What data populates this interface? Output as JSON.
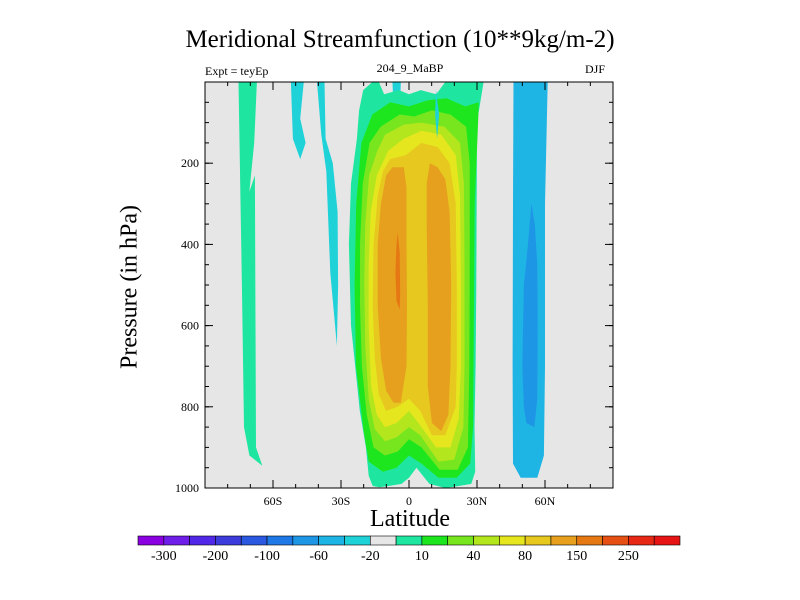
{
  "chart_data": {
    "type": "heatmap",
    "title": "Meridional Streamfunction (10**9kg/m-2)",
    "subtitle_left": "Expt = teyEp",
    "subtitle_center": "204_9_MaBP",
    "subtitle_right": "DJF",
    "xlabel": "Latitude",
    "ylabel": "Pressure (in hPa)",
    "xlim": [
      -90,
      90
    ],
    "ylim": [
      1000,
      0
    ],
    "x_ticks": [
      {
        "label": "60S",
        "value": -60
      },
      {
        "label": "30S",
        "value": -30
      },
      {
        "label": "0",
        "value": 0
      },
      {
        "label": "30N",
        "value": 30
      },
      {
        "label": "60N",
        "value": 60
      }
    ],
    "y_ticks": [
      {
        "label": "200",
        "value": 200
      },
      {
        "label": "400",
        "value": 400
      },
      {
        "label": "600",
        "value": 600
      },
      {
        "label": "800",
        "value": 800
      },
      {
        "label": "1000",
        "value": 1000
      }
    ],
    "colorbar": {
      "colors": [
        "#8a00e0",
        "#6e1ee8",
        "#5128e8",
        "#3c3cdc",
        "#2a58e0",
        "#1e78e6",
        "#1e96e6",
        "#1eb4e4",
        "#1ed2d8",
        "#e6e6e6",
        "#1ee6a0",
        "#1ee61e",
        "#78e61e",
        "#b4e61e",
        "#e6e61e",
        "#e6c81e",
        "#e6a01e",
        "#e67814",
        "#e65014",
        "#e62814",
        "#e61414"
      ],
      "labels": [
        "-300",
        "-200",
        "-100",
        "-60",
        "-20",
        "10",
        "40",
        "80",
        "150",
        "250"
      ]
    },
    "contours": [
      {
        "name": "sh-polar-cell",
        "fill": "#1ee6a0",
        "level": 10,
        "points": [
          [
            -75.2,
            0
          ],
          [
            -67.1,
            0
          ],
          [
            -68.3,
            150
          ],
          [
            -70.4,
            270
          ],
          [
            -68.0,
            230
          ],
          [
            -67.5,
            900
          ],
          [
            -64.7,
            945
          ],
          [
            -70.4,
            920
          ],
          [
            -72.8,
            850
          ],
          [
            -73.7,
            500
          ]
        ]
      },
      {
        "name": "sh-ferrel-strip-a",
        "fill": "#1ed2d8",
        "level": -20,
        "points": [
          [
            -52.1,
            0
          ],
          [
            -46.4,
            0
          ],
          [
            -48.0,
            90
          ],
          [
            -45.6,
            150
          ],
          [
            -48.0,
            190
          ],
          [
            -51.2,
            140
          ]
        ]
      },
      {
        "name": "sh-ferrel-strip-b",
        "fill": "#1ed2d8",
        "level": -20,
        "points": [
          [
            -40.6,
            0
          ],
          [
            -37.3,
            0
          ],
          [
            -36.8,
            140
          ],
          [
            -33.6,
            200
          ],
          [
            -31.5,
            320
          ],
          [
            -31.3,
            500
          ],
          [
            -31.8,
            650
          ],
          [
            -34.7,
            470
          ],
          [
            -36.5,
            220
          ],
          [
            -38.7,
            130
          ]
        ]
      },
      {
        "name": "sh-ferrel-strip-c",
        "fill": "#1ed2d8",
        "level": -20,
        "points": [
          [
            -7.3,
            0
          ],
          [
            -3.6,
            0
          ],
          [
            -4.0,
            80
          ],
          [
            -6.8,
            80
          ]
        ]
      },
      {
        "name": "hadley-10",
        "fill": "#1ee6a0",
        "level": 10,
        "points": [
          [
            -16.2,
            0
          ],
          [
            -13.3,
            0
          ],
          [
            -11.0,
            30
          ],
          [
            -4.5,
            20
          ],
          [
            0,
            30
          ],
          [
            5.2,
            20
          ],
          [
            12.0,
            30
          ],
          [
            16.0,
            0
          ],
          [
            32.9,
            0
          ],
          [
            30.0,
            100
          ],
          [
            29.7,
            500
          ],
          [
            29.4,
            700
          ],
          [
            28.9,
            850
          ],
          [
            29.2,
            960
          ],
          [
            27.5,
            990
          ],
          [
            22.0,
            995
          ],
          [
            16.0,
            1000
          ],
          [
            9.0,
            990
          ],
          [
            3.3,
            950
          ],
          [
            0,
            975
          ],
          [
            -3.3,
            990
          ],
          [
            -9.0,
            995
          ],
          [
            -13.0,
            998
          ],
          [
            -16.0,
            995
          ],
          [
            -17.8,
            970
          ],
          [
            -19.0,
            900
          ],
          [
            -21.7,
            810
          ],
          [
            -25.6,
            600
          ],
          [
            -26.5,
            400
          ],
          [
            -25.6,
            250
          ],
          [
            -23.0,
            140
          ],
          [
            -22.0,
            70
          ],
          [
            -20.2,
            20
          ]
        ]
      },
      {
        "name": "hadley-40",
        "fill": "#1ee61e",
        "level": 40,
        "points": [
          [
            -16.2,
            80
          ],
          [
            -8.3,
            50
          ],
          [
            0,
            60
          ],
          [
            8.3,
            45
          ],
          [
            16.5,
            40
          ],
          [
            24.8,
            60
          ],
          [
            30.8,
            50
          ],
          [
            30.5,
            100
          ],
          [
            29.0,
            300
          ],
          [
            28.6,
            600
          ],
          [
            28.3,
            850
          ],
          [
            27.0,
            940
          ],
          [
            21.0,
            975
          ],
          [
            13.0,
            975
          ],
          [
            5.5,
            940
          ],
          [
            0,
            920
          ],
          [
            -5.5,
            950
          ],
          [
            -11.5,
            960
          ],
          [
            -17.8,
            935
          ],
          [
            -20.0,
            860
          ],
          [
            -23.4,
            700
          ],
          [
            -24.0,
            500
          ],
          [
            -23.3,
            300
          ],
          [
            -21.0,
            150
          ]
        ]
      },
      {
        "name": "hadley-80",
        "fill": "#78e61e",
        "level": 80,
        "points": [
          [
            -12.5,
            110
          ],
          [
            -4.1,
            80
          ],
          [
            2.3,
            85
          ],
          [
            10.1,
            70
          ],
          [
            18.3,
            80
          ],
          [
            25.2,
            110
          ],
          [
            26.8,
            200
          ],
          [
            26.8,
            400
          ],
          [
            26.6,
            700
          ],
          [
            26.0,
            900
          ],
          [
            21.5,
            955
          ],
          [
            13.5,
            955
          ],
          [
            5.5,
            900
          ],
          [
            0,
            880
          ],
          [
            -5.0,
            910
          ],
          [
            -10.6,
            920
          ],
          [
            -15.6,
            900
          ],
          [
            -18.6,
            820
          ],
          [
            -20.8,
            700
          ],
          [
            -21.6,
            550
          ],
          [
            -21.6,
            400
          ],
          [
            -20.4,
            250
          ],
          [
            -17.4,
            150
          ]
        ]
      },
      {
        "name": "hadley-110",
        "fill": "#b4e61e",
        "level": 110,
        "points": [
          [
            -10.6,
            130
          ],
          [
            -2.3,
            105
          ],
          [
            5.5,
            100
          ],
          [
            15.6,
            110
          ],
          [
            22.5,
            150
          ],
          [
            24.2,
            250
          ],
          [
            24.5,
            450
          ],
          [
            24.5,
            700
          ],
          [
            24.0,
            850
          ],
          [
            20.0,
            930
          ],
          [
            13.0,
            935
          ],
          [
            5.0,
            870
          ],
          [
            0,
            850
          ],
          [
            -5.5,
            875
          ],
          [
            -10.6,
            885
          ],
          [
            -15.1,
            855
          ],
          [
            -17.8,
            780
          ],
          [
            -19.3,
            650
          ],
          [
            -19.7,
            500
          ],
          [
            -19.3,
            350
          ],
          [
            -17.6,
            230
          ],
          [
            -14.0,
            170
          ]
        ]
      },
      {
        "name": "hadley-130",
        "fill": "#e6e61e",
        "level": 130,
        "points": [
          [
            -9.2,
            170
          ],
          [
            -2.3,
            140
          ],
          [
            5.5,
            120
          ],
          [
            14.2,
            130
          ],
          [
            20.6,
            180
          ],
          [
            22.5,
            280
          ],
          [
            22.9,
            500
          ],
          [
            22.9,
            700
          ],
          [
            21.9,
            830
          ],
          [
            18.3,
            900
          ],
          [
            11.9,
            900
          ],
          [
            5.5,
            850
          ],
          [
            0,
            810
          ],
          [
            -5.5,
            840
          ],
          [
            -10.6,
            850
          ],
          [
            -14.2,
            820
          ],
          [
            -16.7,
            750
          ],
          [
            -17.8,
            600
          ],
          [
            -17.8,
            450
          ],
          [
            -16.9,
            320
          ],
          [
            -14.2,
            230
          ]
        ]
      },
      {
        "name": "hadley-150",
        "fill": "#e6c81e",
        "level": 150,
        "points": [
          [
            -8.3,
            190
          ],
          [
            -1.4,
            180
          ],
          [
            5.5,
            150
          ],
          [
            12.6,
            160
          ],
          [
            17.9,
            200
          ],
          [
            20.6,
            300
          ],
          [
            21.1,
            500
          ],
          [
            21.1,
            700
          ],
          [
            20.6,
            800
          ],
          [
            16.0,
            870
          ],
          [
            10.1,
            870
          ],
          [
            5.0,
            810
          ],
          [
            0,
            780
          ],
          [
            -5.0,
            800
          ],
          [
            -10.1,
            810
          ],
          [
            -13.3,
            770
          ],
          [
            -15.1,
            680
          ],
          [
            -16.0,
            550
          ],
          [
            -15.6,
            400
          ],
          [
            -13.8,
            280
          ],
          [
            -11.5,
            220
          ]
        ]
      },
      {
        "name": "hadley-200-south",
        "fill": "#e6a01e",
        "level": 200,
        "points": [
          [
            -7.3,
            210
          ],
          [
            -2.3,
            210
          ],
          [
            -1.1,
            260
          ],
          [
            -1.1,
            400
          ],
          [
            -0.9,
            550
          ],
          [
            -1.1,
            700
          ],
          [
            -3.6,
            790
          ],
          [
            -6.8,
            790
          ],
          [
            -10.1,
            760
          ],
          [
            -12.4,
            680
          ],
          [
            -13.8,
            550
          ],
          [
            -13.8,
            400
          ],
          [
            -12.4,
            300
          ],
          [
            -10.1,
            230
          ]
        ]
      },
      {
        "name": "hadley-200-north",
        "fill": "#e6a01e",
        "level": 200,
        "points": [
          [
            9.2,
            200
          ],
          [
            12.6,
            210
          ],
          [
            16.0,
            240
          ],
          [
            17.9,
            320
          ],
          [
            18.6,
            500
          ],
          [
            18.3,
            700
          ],
          [
            17.4,
            820
          ],
          [
            14.2,
            860
          ],
          [
            10.1,
            840
          ],
          [
            8.3,
            750
          ],
          [
            8.3,
            550
          ],
          [
            7.8,
            350
          ],
          [
            7.8,
            250
          ]
        ]
      },
      {
        "name": "hadley-250",
        "fill": "#e67814",
        "level": 250,
        "points": [
          [
            -5.0,
            370
          ],
          [
            -4.1,
            420
          ],
          [
            -3.9,
            520
          ],
          [
            -4.1,
            560
          ],
          [
            -5.5,
            540
          ],
          [
            -6.0,
            470
          ],
          [
            -5.5,
            400
          ]
        ]
      },
      {
        "name": "nh-ferrel-20",
        "fill": "#1eb4e4",
        "level": -20,
        "points": [
          [
            46.1,
            0
          ],
          [
            61.2,
            0
          ],
          [
            60.8,
            100
          ],
          [
            60.0,
            300
          ],
          [
            60.0,
            700
          ],
          [
            59.5,
            920
          ],
          [
            56.6,
            975
          ],
          [
            49.3,
            975
          ],
          [
            45.9,
            940
          ],
          [
            45.7,
            700
          ],
          [
            45.9,
            300
          ]
        ]
      },
      {
        "name": "nh-ferrel-40",
        "fill": "#1e96e6",
        "level": -40,
        "points": [
          [
            54.0,
            300
          ],
          [
            55.5,
            350
          ],
          [
            56.6,
            450
          ],
          [
            56.8,
            600
          ],
          [
            56.6,
            780
          ],
          [
            55.3,
            850
          ],
          [
            51.8,
            840
          ],
          [
            50.7,
            800
          ],
          [
            50.0,
            700
          ],
          [
            50.7,
            500
          ],
          [
            52.5,
            400
          ]
        ]
      },
      {
        "name": "sh-polar-dot",
        "fill": "#1ed2d8",
        "level": -20,
        "points": [
          [
            11.9,
            20
          ],
          [
            13.3,
            80
          ],
          [
            12.4,
            140
          ],
          [
            11.5,
            80
          ]
        ]
      }
    ]
  }
}
